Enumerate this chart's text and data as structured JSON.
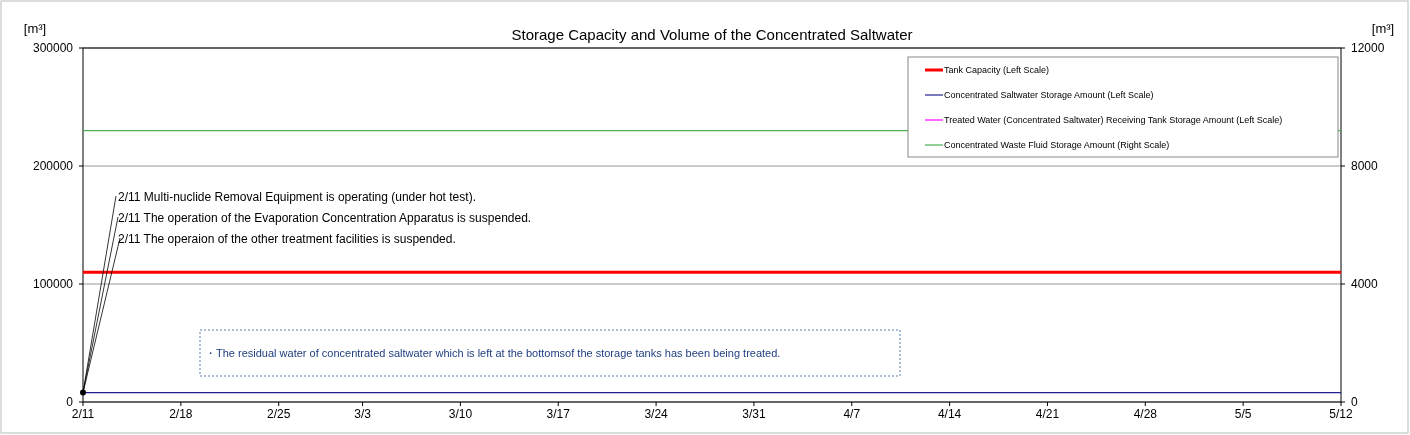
{
  "chart_data": {
    "type": "line",
    "title": "Storage Capacity and Volume of the Concentrated Saltwater",
    "ylabel": "[m³]",
    "y2label": "[m³]",
    "xlim": [
      "--02-11",
      "--05-12"
    ],
    "xticks": [
      {
        "value": "--02-11",
        "label": "2/11"
      },
      {
        "value": "--02-18",
        "label": "2/18"
      },
      {
        "value": "--02-25",
        "label": "2/25"
      },
      {
        "value": "--03-03",
        "label": "3/3"
      },
      {
        "value": "--03-10",
        "label": "3/10"
      },
      {
        "value": "--03-17",
        "label": "3/17"
      },
      {
        "value": "--03-24",
        "label": "3/24"
      },
      {
        "value": "--03-31",
        "label": "3/31"
      },
      {
        "value": "--04-07",
        "label": "4/7"
      },
      {
        "value": "--04-14",
        "label": "4/14"
      },
      {
        "value": "--04-21",
        "label": "4/21"
      },
      {
        "value": "--04-28",
        "label": "4/28"
      },
      {
        "value": "--05-05",
        "label": "5/5"
      },
      {
        "value": "--05-12",
        "label": "5/12"
      }
    ],
    "ylim": [
      0,
      300000
    ],
    "yticks": [
      0,
      100000,
      200000,
      300000
    ],
    "y2lim": [
      0,
      12000
    ],
    "y2ticks": [
      0,
      4000,
      8000,
      12000
    ],
    "grid": "y",
    "legend": "top right",
    "line_style": "solid",
    "series": [
      {
        "name": "Tank Capacity (Left Scale)",
        "color": "#ff0000",
        "x": [
          "--02-11",
          "--05-12"
        ],
        "values": [
          110000,
          110000
        ]
      },
      {
        "name": "Concentrated Saltwater Storage Amount (Left Scale)",
        "color": "#202090",
        "x": [
          "--02-11",
          "--05-12"
        ],
        "values": [
          8000,
          8000
        ]
      },
      {
        "name": "Treated Water (Concentrated Saltwater) Receiving Tank Storage Amount (Left Scale)",
        "color": "#ff00ff"
      },
      {
        "name": "Concentrated Waste Fluid Storage Amount (Right Scale)",
        "color": "#4caf50",
        "axis": "y2",
        "x": [
          "--02-11",
          "--05-12"
        ],
        "values": [
          9200,
          9200
        ]
      }
    ],
    "annotations": [
      {
        "text": "2/11  Multi-nuclide Removal Equipment is operating (under hot test).",
        "x": "--02-11",
        "y": 8000
      },
      {
        "text": "2/11  The operation of the Evaporation Concentration Apparatus is suspended.",
        "x": "--02-11",
        "y": 8000
      },
      {
        "text": "2/11  The operaion of the other treatment facilities is suspended.",
        "x": "--02-11",
        "y": 8000
      },
      "・The residual water of concentrated saltwater which is left at the bottomsof the storage tanks has been being treated."
    ]
  }
}
